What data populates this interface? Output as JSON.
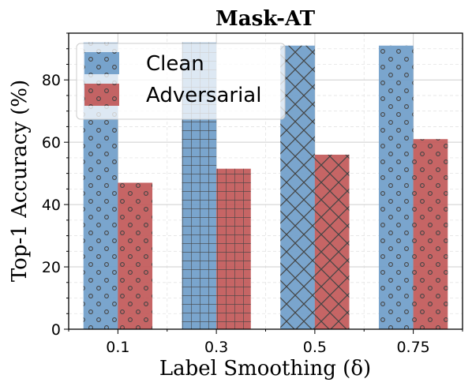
{
  "chart_data": {
    "type": "bar",
    "title": "Mask-AT",
    "xlabel": "Label Smoothing (δ)",
    "ylabel": "Top-1 Accuracy (%)",
    "categories": [
      "0.1",
      "0.3",
      "0.5",
      "0.75"
    ],
    "ylim": [
      0,
      95
    ],
    "yticks": [
      0,
      20,
      40,
      60,
      80
    ],
    "grid": true,
    "legend_position": "top-left",
    "series": [
      {
        "name": "Clean",
        "color": "#6b9bc8",
        "values": [
          92,
          92,
          91,
          91
        ]
      },
      {
        "name": "Adversarial",
        "color": "#c05454",
        "values": [
          47,
          51.5,
          56,
          61
        ]
      }
    ],
    "bar_hatches": [
      "circles",
      "grid",
      "cross",
      "circles"
    ]
  }
}
